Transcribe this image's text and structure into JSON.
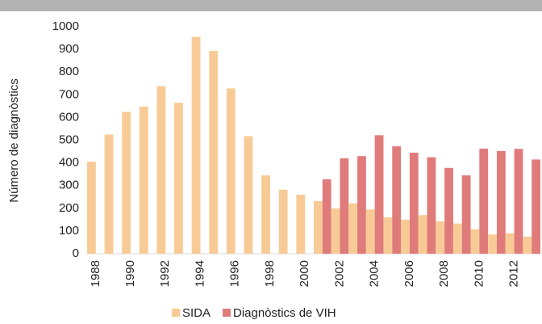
{
  "chart_data": {
    "type": "bar",
    "y_label": "Número de diagnòstics",
    "categories": [
      "1988",
      null,
      "1990",
      null,
      "1992",
      null,
      "1994",
      null,
      "1996",
      null,
      "1998",
      null,
      "2000",
      null,
      "2002",
      null,
      "2004",
      null,
      "2006",
      null,
      "2008",
      null,
      "2010",
      null,
      "2012",
      null
    ],
    "series": [
      {
        "name": "SIDA",
        "color": "#f8cb96",
        "values": [
          405,
          525,
          625,
          648,
          738,
          665,
          955,
          893,
          728,
          518,
          345,
          282,
          260,
          232,
          200,
          222,
          195,
          160,
          150,
          170,
          143,
          133,
          108,
          85,
          90,
          75
        ]
      },
      {
        "name": "Diagnòstics de VIH",
        "color": "#e07b7b",
        "values": [
          null,
          null,
          null,
          null,
          null,
          null,
          null,
          null,
          null,
          null,
          null,
          null,
          null,
          328,
          420,
          430,
          522,
          473,
          445,
          425,
          378,
          345,
          463,
          452,
          462,
          415
        ]
      }
    ],
    "ylim": [
      0,
      1000
    ],
    "yticks": [
      0,
      100,
      200,
      300,
      400,
      500,
      600,
      700,
      800,
      900,
      1000
    ],
    "grid": false,
    "legend": "bottom"
  }
}
